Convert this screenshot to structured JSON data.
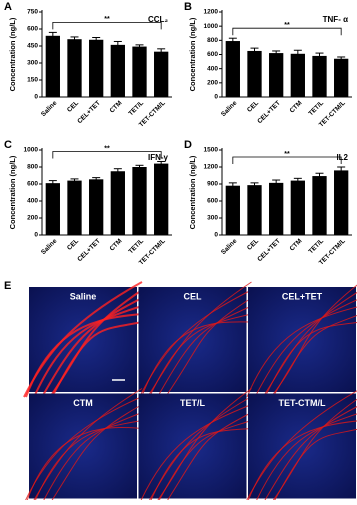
{
  "chart_data": [
    {
      "type": "bar",
      "panel": "A",
      "title": "CCL₂",
      "y_label": "Concentration (ng/L)",
      "annotation": "**",
      "categories": [
        "Saline",
        "CEL",
        "CEL+TET",
        "CTM",
        "TET/L",
        "TET-CTM/L"
      ],
      "values": [
        540,
        510,
        505,
        460,
        445,
        400
      ],
      "errors": [
        30,
        20,
        20,
        30,
        15,
        25
      ],
      "color": "#000000",
      "ylim": [
        0,
        750
      ],
      "yticks": [
        0,
        150,
        300,
        450,
        600,
        750
      ]
    },
    {
      "type": "bar",
      "panel": "B",
      "title": "TNF- α",
      "y_label": "Concentration (ng/L)",
      "annotation": "**",
      "categories": [
        "Saline",
        "CEL",
        "CEL+TET",
        "CTM",
        "TET/L",
        "TET-CTM/L"
      ],
      "values": [
        790,
        650,
        620,
        610,
        580,
        540
      ],
      "errors": [
        40,
        40,
        30,
        50,
        40,
        25
      ],
      "color": "#000000",
      "ylim": [
        0,
        1200
      ],
      "yticks": [
        0,
        200,
        400,
        600,
        800,
        1000,
        1200
      ]
    },
    {
      "type": "bar",
      "panel": "C",
      "title": "IFN-γ",
      "y_label": "Concentration (ng/L)",
      "annotation": "**",
      "categories": [
        "Saline",
        "CEL",
        "CEL+TET",
        "CTM",
        "TET/L",
        "TET-CTM/L"
      ],
      "values": [
        610,
        640,
        655,
        750,
        800,
        840
      ],
      "errors": [
        30,
        20,
        20,
        30,
        20,
        25
      ],
      "color": "#000000",
      "ylim": [
        0,
        1000
      ],
      "yticks": [
        0,
        200,
        400,
        600,
        800,
        1000
      ]
    },
    {
      "type": "bar",
      "panel": "D",
      "title": "IL2",
      "y_label": "Concentration (ng/L)",
      "annotation": "**",
      "categories": [
        "Saline",
        "CEL",
        "CEL+TET",
        "CTM",
        "TET/L",
        "TET-CTM/L"
      ],
      "values": [
        870,
        880,
        920,
        960,
        1040,
        1140
      ],
      "errors": [
        50,
        40,
        50,
        40,
        50,
        60
      ],
      "color": "#000000",
      "ylim": [
        0,
        1500
      ],
      "yticks": [
        0,
        300,
        600,
        900,
        1200,
        1500
      ]
    }
  ],
  "panel_e": {
    "label": "E",
    "images": [
      "Saline",
      "CEL",
      "CEL+TET",
      "CTM",
      "TET/L",
      "TET-CTM/L"
    ]
  }
}
